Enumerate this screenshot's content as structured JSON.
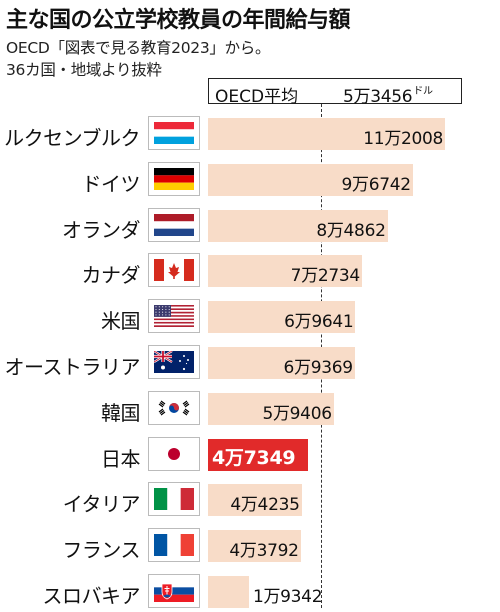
{
  "title": "主な国の公立学校教員の年間給与額",
  "subtitle_lines": [
    "OECD「図表で見る教育2023」から。",
    "36カ国・地域より抜粋"
  ],
  "average": {
    "label": "OECD平均",
    "value_text": "5万3456",
    "unit": "ドル",
    "value": 53456
  },
  "chart_data": {
    "type": "bar",
    "orientation": "horizontal",
    "title": "主な国の公立学校教員の年間給与額",
    "categories": [
      "ルクセンブルク",
      "ドイツ",
      "オランダ",
      "カナダ",
      "米国",
      "オーストラリア",
      "韓国",
      "日本",
      "イタリア",
      "フランス",
      "スロバキア"
    ],
    "values": [
      112008,
      96742,
      84862,
      72734,
      69641,
      69369,
      59406,
      47349,
      44235,
      43792,
      19342
    ],
    "value_labels": [
      "11万2008",
      "9万6742",
      "8万4862",
      "7万2734",
      "6万9641",
      "6万9369",
      "5万9406",
      "4万7349",
      "4万4235",
      "4万3792",
      "1万9342"
    ],
    "unit": "ドル",
    "reference_line": {
      "label": "OECD平均",
      "value": 53456
    },
    "highlight": "日本",
    "bar_color": "#f8dcc8",
    "highlight_color": "#e12a2a",
    "xlim": [
      0,
      120000
    ]
  },
  "flags": [
    "luxembourg-flag",
    "germany-flag",
    "netherlands-flag",
    "canada-flag",
    "usa-flag",
    "australia-flag",
    "south-korea-flag",
    "japan-flag",
    "italy-flag",
    "france-flag",
    "slovakia-flag"
  ]
}
